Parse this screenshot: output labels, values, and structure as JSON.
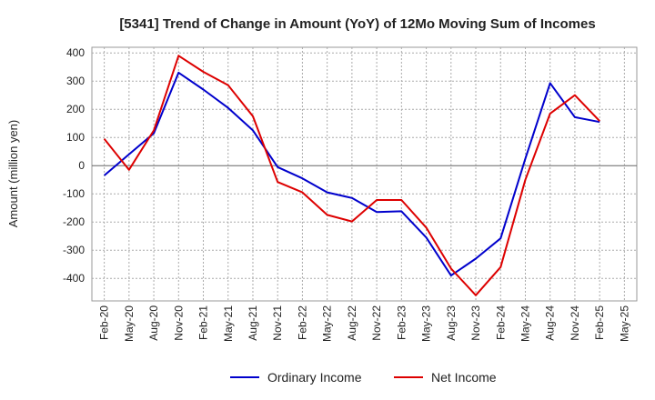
{
  "chart_data": {
    "type": "line",
    "title": "[5341]  Trend of Change in Amount (YoY) of 12Mo Moving Sum of Incomes",
    "ylabel": "Amount (million yen)",
    "xlabel": "",
    "ylim": [
      -480,
      420
    ],
    "yticks": [
      400,
      300,
      200,
      100,
      0,
      -100,
      -200,
      -300,
      -400
    ],
    "ytick_labels": [
      "400",
      "300",
      "200",
      "100",
      "0",
      "-100",
      "-200",
      "-300",
      "-400"
    ],
    "categories": [
      "Feb-20",
      "May-20",
      "Aug-20",
      "Nov-20",
      "Feb-21",
      "May-21",
      "Aug-21",
      "Nov-21",
      "Feb-22",
      "May-22",
      "Aug-22",
      "Nov-22",
      "Feb-23",
      "May-23",
      "Aug-23",
      "Nov-23",
      "Feb-24",
      "May-24",
      "Aug-24",
      "Nov-24",
      "Feb-25",
      "May-25"
    ],
    "x_tick_labels": [
      "Feb-20",
      "May-20",
      "Aug-20",
      "Nov-20",
      "Feb-21",
      "May-21",
      "Aug-21",
      "Nov-21",
      "Feb-22",
      "May-22",
      "Aug-22",
      "Nov-22",
      "Feb-23",
      "May-23",
      "Aug-23",
      "Nov-23",
      "Feb-24",
      "May-24",
      "Aug-24",
      "Nov-24",
      "Feb-25",
      "May-25"
    ],
    "grid": true,
    "legend_position": "bottom",
    "series": [
      {
        "name": "Ordinary Income",
        "color": "#0000cc",
        "values": [
          -35,
          40,
          115,
          330,
          270,
          205,
          125,
          -5,
          -45,
          -95,
          -115,
          -165,
          -162,
          -255,
          -390,
          -330,
          -258,
          25,
          293,
          172,
          155,
          null
        ]
      },
      {
        "name": "Net Income",
        "color": "#dd0000",
        "values": [
          95,
          -15,
          125,
          390,
          333,
          285,
          175,
          -58,
          -95,
          -175,
          -198,
          -122,
          -122,
          -220,
          -365,
          -460,
          -360,
          -50,
          185,
          250,
          158,
          null
        ]
      }
    ]
  }
}
